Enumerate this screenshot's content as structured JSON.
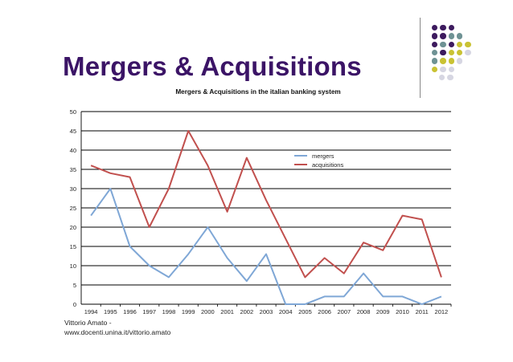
{
  "slide": {
    "title": "Mergers & Acquisitions",
    "author_line1": "Vittorio Amato -",
    "author_line2": "www.docenti.unina.it/vittorio.amato"
  },
  "decoration": {
    "dot_colors": {
      "purple": "#3d1a5e",
      "teal": "#6e9294",
      "olive": "#c9c233",
      "gray": "#d6d6e2"
    },
    "rows": [
      [
        "purple",
        "purple",
        "purple"
      ],
      [
        "purple",
        "purple",
        "teal",
        "teal"
      ],
      [
        "purple",
        "teal",
        "purple",
        "olive",
        "olive"
      ],
      [
        "teal",
        "purple",
        "olive",
        "olive",
        "gray"
      ],
      [
        "teal",
        "olive",
        "olive",
        "gray"
      ],
      [
        "olive",
        "gray",
        "gray"
      ],
      [
        "gray",
        "gray"
      ]
    ]
  },
  "chart_data": {
    "type": "line",
    "title": "Mergers & Acquisitions in the italian banking system",
    "xlabel": "",
    "ylabel": "",
    "categories": [
      "1994",
      "1995",
      "1996",
      "1997",
      "1998",
      "1999",
      "2000",
      "2001",
      "2002",
      "2003",
      "2004",
      "2005",
      "2006",
      "2007",
      "2008",
      "2009",
      "2010",
      "2011",
      "2012"
    ],
    "ylim": [
      0,
      50
    ],
    "yticks": [
      0,
      5,
      10,
      15,
      20,
      25,
      30,
      35,
      40,
      45,
      50
    ],
    "grid": true,
    "legend_position": "upper-right",
    "series": [
      {
        "name": "mergers",
        "color": "#7fa7d6",
        "values": [
          23,
          30,
          15,
          10,
          7,
          13,
          20,
          12,
          6,
          13,
          0,
          0,
          2,
          2,
          8,
          2,
          2,
          0,
          2
        ]
      },
      {
        "name": "acquisitions",
        "color": "#c1504e",
        "values": [
          36,
          34,
          33,
          20,
          30,
          45,
          36,
          24,
          38,
          27,
          17,
          7,
          12,
          8,
          16,
          14,
          23,
          22,
          7
        ]
      }
    ]
  }
}
